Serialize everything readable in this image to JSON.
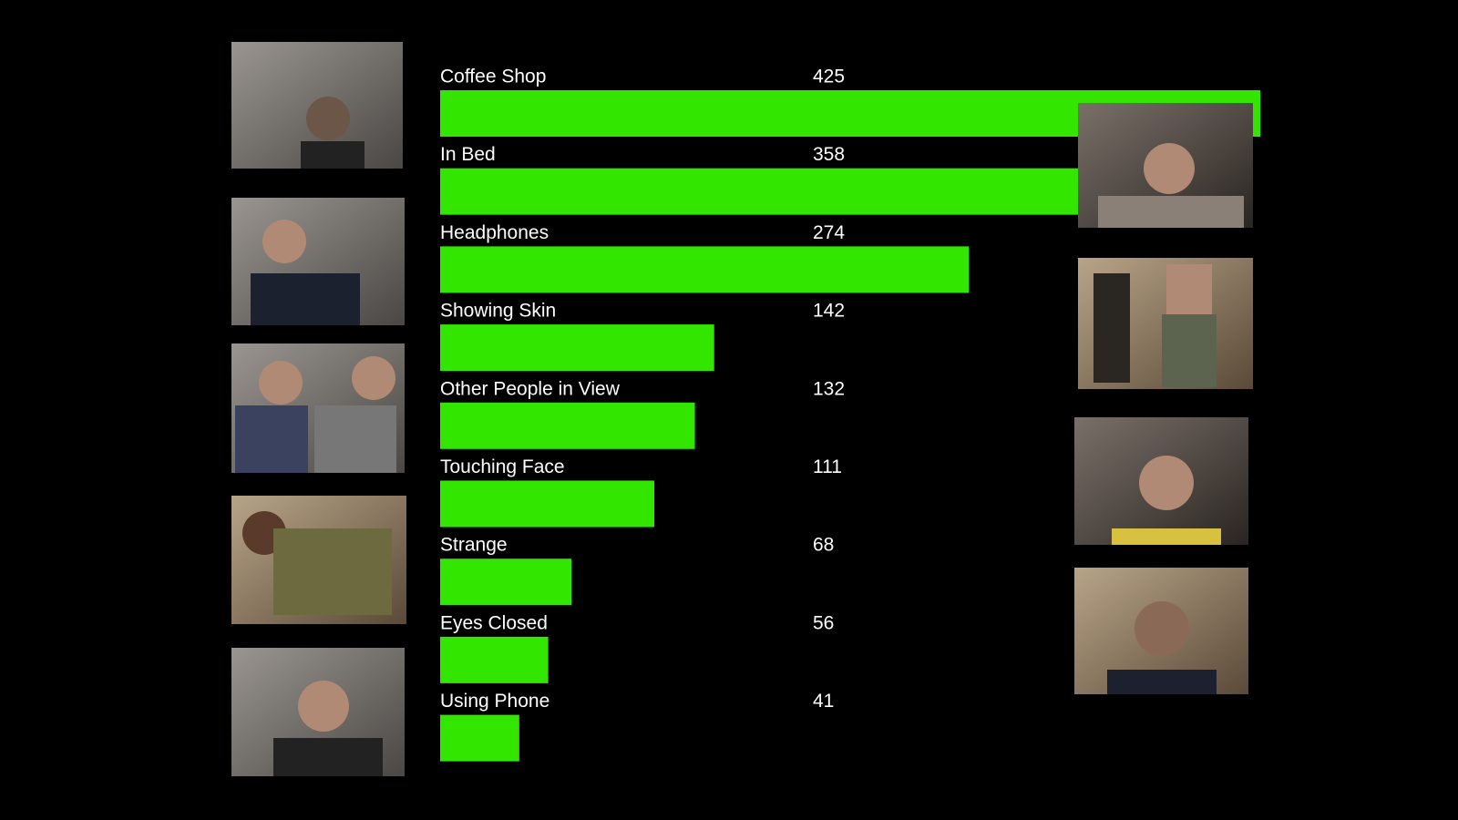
{
  "chart_data": {
    "type": "bar",
    "orientation": "horizontal",
    "categories": [
      "Coffee Shop",
      "In Bed",
      "Headphones",
      "Showing Skin",
      "Other People in View",
      "Touching Face",
      "Strange",
      "Eyes Closed",
      "Using Phone"
    ],
    "values": [
      425,
      358,
      274,
      142,
      132,
      111,
      68,
      56,
      41
    ],
    "color": "#33e600"
  }
}
